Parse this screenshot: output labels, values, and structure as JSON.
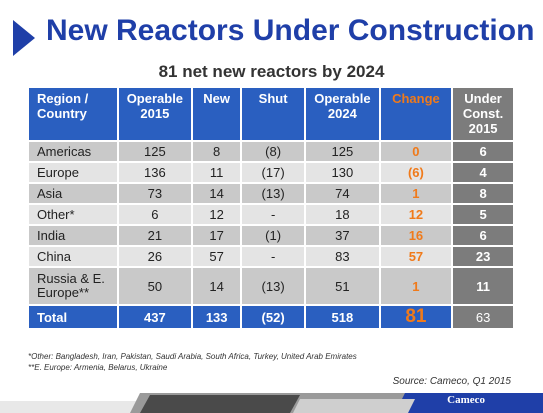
{
  "title": "New Reactors Under Construction",
  "subtitle": "81 net new reactors by 2024",
  "table": {
    "headers": [
      "Region / Country",
      "Operable 2015",
      "New",
      "Shut",
      "Operable 2024",
      "Change",
      "Under Const. 2015"
    ],
    "rows": [
      [
        "Americas",
        "125",
        "8",
        "(8)",
        "125",
        "0",
        "6"
      ],
      [
        "Europe",
        "136",
        "11",
        "(17)",
        "130",
        "(6)",
        "4"
      ],
      [
        "Asia",
        "73",
        "14",
        "(13)",
        "74",
        "1",
        "8"
      ],
      [
        "Other*",
        "6",
        "12",
        "-",
        "18",
        "12",
        "5"
      ],
      [
        "India",
        "21",
        "17",
        "(1)",
        "37",
        "16",
        "6"
      ],
      [
        "China",
        "26",
        "57",
        "-",
        "83",
        "57",
        "23"
      ],
      [
        "Russia & E. Europe**",
        "50",
        "14",
        "(13)",
        "51",
        "1",
        "11"
      ]
    ],
    "total": [
      "Total",
      "437",
      "133",
      "(52)",
      "518",
      "81",
      "63"
    ]
  },
  "footnotes": {
    "other": "*Other: Bangladesh, Iran, Pakistan, Saudi Arabia, South Africa, Turkey, United Arab Emirates",
    "europe": "**E. Europe: Armenia, Belarus, Ukraine"
  },
  "source": "Source: Cameco,  Q1 2015",
  "logo": "Cameco",
  "colors": {
    "title_blue": "#1f3fa8",
    "header_blue": "#2a5fc0",
    "change_orange": "#f07a1a",
    "under_gray": "#7c7c7c"
  }
}
